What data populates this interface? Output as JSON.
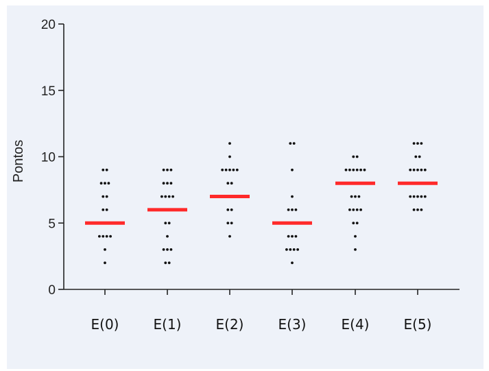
{
  "chart_data": {
    "type": "scatter",
    "title": "",
    "xlabel": "",
    "ylabel": "Pontos",
    "ylim": [
      0,
      20
    ],
    "yticks": [
      0,
      5,
      10,
      15,
      20
    ],
    "grid": false,
    "categories": [
      "E(0)",
      "E(1)",
      "E(2)",
      "E(3)",
      "E(4)",
      "E(5)"
    ],
    "medians": [
      5,
      6,
      7,
      5,
      8,
      8
    ],
    "points": [
      [
        9,
        9,
        8,
        8,
        8,
        7,
        7,
        6,
        6,
        5,
        5,
        5,
        5,
        5,
        5,
        4,
        4,
        4,
        4,
        3,
        2
      ],
      [
        9,
        9,
        9,
        8,
        8,
        8,
        7,
        7,
        7,
        7,
        6,
        6,
        5,
        5,
        4,
        3,
        3,
        3,
        2,
        2
      ],
      [
        11,
        10,
        9,
        9,
        9,
        9,
        9,
        8,
        8,
        7,
        7,
        7,
        7,
        7,
        7,
        6,
        6,
        5,
        5,
        4
      ],
      [
        11,
        11,
        9,
        7,
        6,
        6,
        6,
        5,
        5,
        5,
        5,
        5,
        5,
        4,
        4,
        4,
        3,
        3,
        3,
        3,
        2
      ],
      [
        10,
        10,
        9,
        9,
        9,
        9,
        9,
        9,
        8,
        8,
        8,
        8,
        8,
        8,
        7,
        7,
        7,
        6,
        6,
        6,
        6,
        5,
        5,
        4,
        3
      ],
      [
        11,
        11,
        11,
        10,
        10,
        9,
        9,
        9,
        9,
        9,
        8,
        8,
        8,
        8,
        8,
        8,
        7,
        7,
        7,
        7,
        7,
        6,
        6,
        6
      ]
    ],
    "point_color": "#111111",
    "median_color": "#ff2a2a",
    "axis_color": "#222222"
  }
}
